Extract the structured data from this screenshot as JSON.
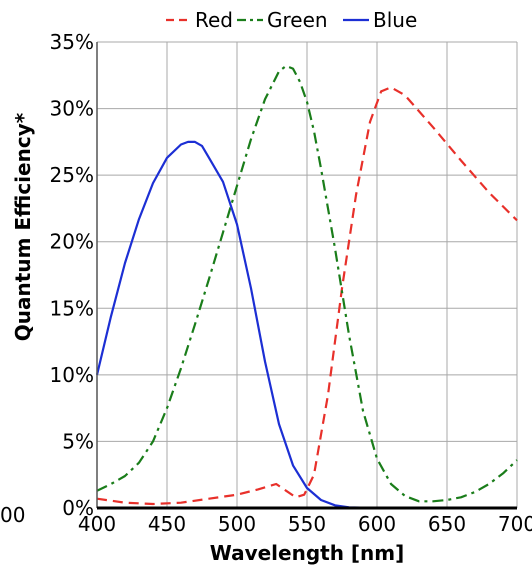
{
  "chart_data": {
    "type": "line",
    "title": "",
    "xlabel": "Wavelength [nm]",
    "ylabel": "Quantum Efficiency*",
    "xlim": [
      400,
      700
    ],
    "ylim": [
      0,
      35
    ],
    "x_ticks": [
      400,
      450,
      500,
      550,
      600,
      650,
      700
    ],
    "x_tick_labels": [
      "400",
      "450",
      "500",
      "550",
      "600",
      "650",
      "700"
    ],
    "y_ticks": [
      0,
      5,
      10,
      15,
      20,
      25,
      30,
      35
    ],
    "y_tick_labels": [
      "0%",
      "5%",
      "10%",
      "15%",
      "20%",
      "25%",
      "30%",
      "35%"
    ],
    "clipped_left_label": "00",
    "grid": true,
    "legend_position": "top",
    "series": [
      {
        "name": "Red",
        "color": "#e8302a",
        "dash": "dashed",
        "x": [
          400,
          420,
          440,
          460,
          480,
          500,
          515,
          528,
          535,
          542,
          548,
          555,
          565,
          575,
          585,
          595,
          603,
          610,
          620,
          640,
          660,
          680,
          700
        ],
        "y": [
          0.7,
          0.4,
          0.3,
          0.4,
          0.7,
          1.0,
          1.4,
          1.8,
          1.3,
          0.8,
          1.0,
          2.5,
          8.5,
          16.5,
          23.5,
          29.0,
          31.3,
          31.6,
          31.0,
          28.6,
          26.1,
          23.7,
          21.6
        ]
      },
      {
        "name": "Green",
        "color": "#1a7d1a",
        "dash": "dashdot",
        "x": [
          400,
          410,
          420,
          430,
          440,
          450,
          460,
          470,
          480,
          490,
          500,
          510,
          520,
          530,
          535,
          540,
          545,
          550,
          555,
          560,
          570,
          580,
          590,
          600,
          610,
          620,
          630,
          640,
          650,
          660,
          670,
          680,
          690,
          700
        ],
        "y": [
          1.3,
          1.8,
          2.4,
          3.4,
          5.0,
          7.5,
          10.5,
          13.8,
          17.2,
          20.7,
          24.2,
          27.7,
          30.7,
          32.8,
          33.2,
          33.0,
          32.0,
          30.5,
          28.3,
          25.5,
          19.5,
          13.0,
          7.3,
          3.7,
          1.8,
          0.9,
          0.5,
          0.5,
          0.6,
          0.8,
          1.2,
          1.8,
          2.6,
          3.6
        ]
      },
      {
        "name": "Blue",
        "color": "#1c2fd4",
        "dash": "solid",
        "x": [
          400,
          410,
          420,
          430,
          440,
          450,
          460,
          465,
          470,
          475,
          480,
          490,
          500,
          510,
          520,
          530,
          540,
          550,
          560,
          570,
          580,
          600,
          650,
          700
        ],
        "y": [
          10.0,
          14.4,
          18.4,
          21.7,
          24.4,
          26.3,
          27.3,
          27.5,
          27.5,
          27.2,
          26.3,
          24.5,
          21.3,
          16.5,
          11.0,
          6.3,
          3.2,
          1.5,
          0.6,
          0.2,
          0.05,
          0,
          0,
          0
        ]
      }
    ]
  }
}
